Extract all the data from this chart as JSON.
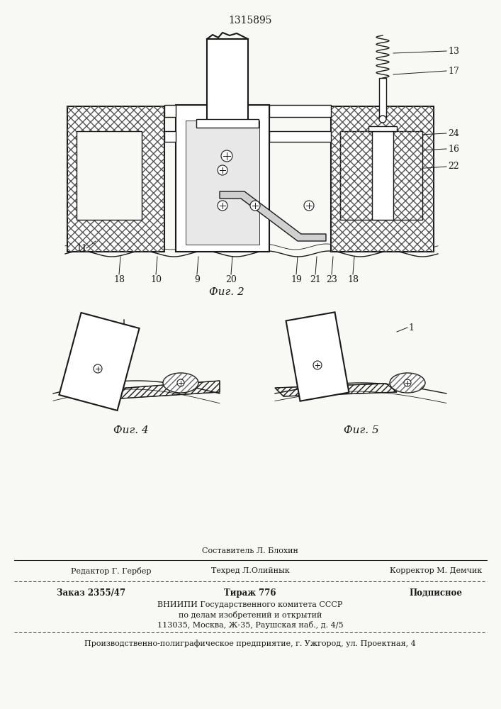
{
  "patent_number": "1315895",
  "bg_color": "#f8f8f5",
  "line_color": "#1a1a1a",
  "fig2_caption": "Фиг. 2",
  "fig4_caption": "Фиг. 4",
  "fig5_caption": "Фиг. 5",
  "footer": {
    "sestavitel": "Составитель Л. Блохин",
    "redaktor": "Редактор Г. Гербер",
    "tekhred": "Техред Л.Олийнык",
    "korrektor": "Корректор М. Демчик",
    "zakaz": "Заказ 2355/47",
    "tirazh": "Тираж 776",
    "podpisnoe": "Подписное",
    "vniiipi": "ВНИИПИ Государственного комитета СССР",
    "po_delam": "по делам изобретений и открытий",
    "address": "113035, Москва, Ж-35, Раушская наб., д. 4/5",
    "enterprise": "Производственно-полиграфическое предприятие, г. Ужгород, ул. Проектная, 4"
  }
}
